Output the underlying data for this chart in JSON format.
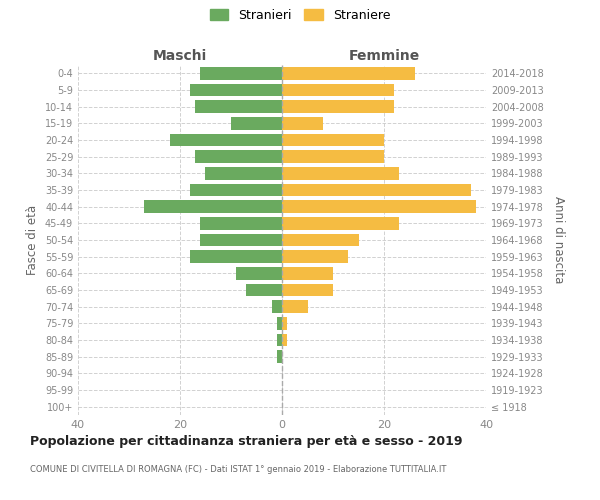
{
  "age_groups": [
    "100+",
    "95-99",
    "90-94",
    "85-89",
    "80-84",
    "75-79",
    "70-74",
    "65-69",
    "60-64",
    "55-59",
    "50-54",
    "45-49",
    "40-44",
    "35-39",
    "30-34",
    "25-29",
    "20-24",
    "15-19",
    "10-14",
    "5-9",
    "0-4"
  ],
  "birth_years": [
    "≤ 1918",
    "1919-1923",
    "1924-1928",
    "1929-1933",
    "1934-1938",
    "1939-1943",
    "1944-1948",
    "1949-1953",
    "1954-1958",
    "1959-1963",
    "1964-1968",
    "1969-1973",
    "1974-1978",
    "1979-1983",
    "1984-1988",
    "1989-1993",
    "1994-1998",
    "1999-2003",
    "2004-2008",
    "2009-2013",
    "2014-2018"
  ],
  "males": [
    0,
    0,
    0,
    1,
    1,
    1,
    2,
    7,
    9,
    18,
    16,
    16,
    27,
    18,
    15,
    17,
    22,
    10,
    17,
    18,
    16
  ],
  "females": [
    0,
    0,
    0,
    0,
    1,
    1,
    5,
    10,
    10,
    13,
    15,
    23,
    38,
    37,
    23,
    20,
    20,
    8,
    22,
    22,
    26
  ],
  "male_color": "#6aaa5f",
  "female_color": "#f5bc42",
  "background_color": "#ffffff",
  "grid_color": "#cccccc",
  "title": "Popolazione per cittadinanza straniera per età e sesso - 2019",
  "subtitle": "COMUNE DI CIVITELLA DI ROMAGNA (FC) - Dati ISTAT 1° gennaio 2019 - Elaborazione TUTTITALIA.IT",
  "xlim": 40,
  "male_label": "Stranieri",
  "female_label": "Straniere",
  "left_header": "Maschi",
  "right_header": "Femmine",
  "ylabel_left": "Fasce di età",
  "ylabel_right": "Anni di nascita",
  "tick_color": "#888888",
  "bar_height": 0.75
}
